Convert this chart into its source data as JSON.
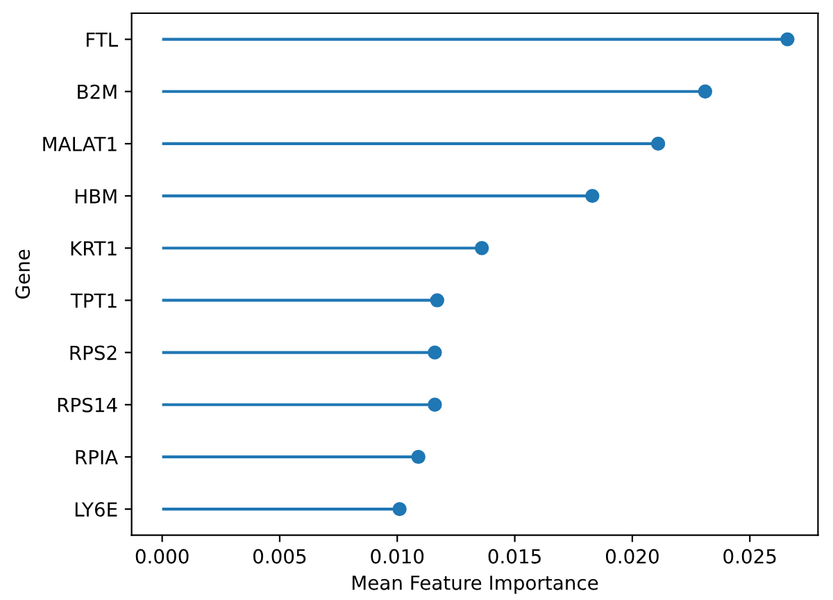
{
  "chart_data": {
    "type": "lollipop",
    "orientation": "horizontal",
    "xlabel": "Mean Feature Importance",
    "ylabel": "Gene",
    "categories": [
      "FTL",
      "B2M",
      "MALAT1",
      "HBM",
      "KRT1",
      "TPT1",
      "RPS2",
      "RPS14",
      "RPIA",
      "LY6E"
    ],
    "values": [
      0.0266,
      0.0231,
      0.0211,
      0.0183,
      0.0136,
      0.0117,
      0.0116,
      0.0116,
      0.0109,
      0.0101
    ],
    "color": "#1f77b4",
    "marker": "circle",
    "xlim": [
      -0.0013,
      0.0279
    ],
    "xticks": [
      {
        "value": 0,
        "label": "0.000"
      },
      {
        "value": 0.005,
        "label": "0.005"
      },
      {
        "value": 0.01,
        "label": "0.010"
      },
      {
        "value": 0.015,
        "label": "0.015"
      },
      {
        "value": 0.02,
        "label": "0.020"
      },
      {
        "value": 0.025,
        "label": "0.025"
      }
    ],
    "grid": false,
    "legend": false
  }
}
